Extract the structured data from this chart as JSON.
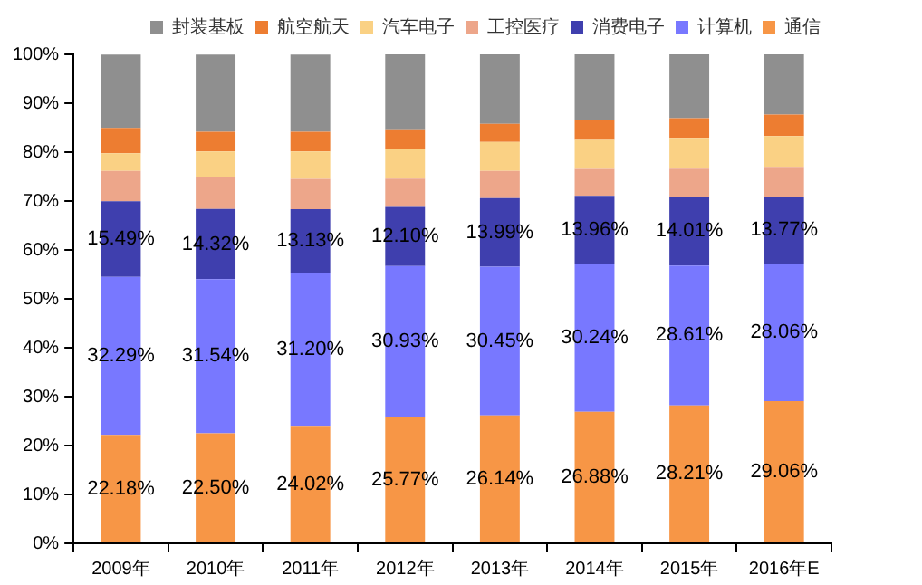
{
  "chart_data": {
    "type": "bar",
    "stacked": true,
    "categories": [
      "2009年",
      "2010年",
      "2011年",
      "2012年",
      "2013年",
      "2014年",
      "2015年",
      "2016年E"
    ],
    "ylim": [
      0,
      100
    ],
    "yticks": [
      {
        "value": 0,
        "label": "0%"
      },
      {
        "value": 10,
        "label": "10%"
      },
      {
        "value": 20,
        "label": "20%"
      },
      {
        "value": 30,
        "label": "30%"
      },
      {
        "value": 40,
        "label": "40%"
      },
      {
        "value": 50,
        "label": "50%"
      },
      {
        "value": 60,
        "label": "60%"
      },
      {
        "value": 70,
        "label": "70%"
      },
      {
        "value": 80,
        "label": "80%"
      },
      {
        "value": 90,
        "label": "90%"
      },
      {
        "value": 100,
        "label": "100%"
      }
    ],
    "grid": false,
    "legend": "top",
    "series": [
      {
        "name": "通信",
        "color": "#f79646",
        "values": [
          22.18,
          22.5,
          24.02,
          25.77,
          26.14,
          26.88,
          28.21,
          29.06
        ],
        "value_labels": [
          "22.18%",
          "22.50%",
          "24.02%",
          "25.77%",
          "26.14%",
          "26.88%",
          "28.21%",
          "29.06%"
        ]
      },
      {
        "name": "计算机",
        "color": "#7878ff",
        "values": [
          32.29,
          31.54,
          31.2,
          30.93,
          30.45,
          30.24,
          28.61,
          28.06
        ],
        "value_labels": [
          "32.29%",
          "31.54%",
          "31.20%",
          "30.93%",
          "30.45%",
          "30.24%",
          "28.61%",
          "28.06%"
        ]
      },
      {
        "name": "消费电子",
        "color": "#3f3fae",
        "values": [
          15.49,
          14.32,
          13.13,
          12.1,
          13.99,
          13.96,
          14.01,
          13.77
        ],
        "value_labels": [
          "15.49%",
          "14.32%",
          "13.13%",
          "12.10%",
          "13.99%",
          "13.96%",
          "14.01%",
          "13.77%"
        ]
      },
      {
        "name": "工控医疗",
        "color": "#eda68a",
        "values": [
          6.2,
          6.6,
          6.2,
          5.8,
          5.6,
          5.5,
          5.8,
          6.1
        ]
      },
      {
        "name": "汽车电子",
        "color": "#fad184",
        "values": [
          3.6,
          5.2,
          5.6,
          6.0,
          5.9,
          5.9,
          6.3,
          6.3
        ]
      },
      {
        "name": "航空航天",
        "color": "#ed7d31",
        "values": [
          5.2,
          4.0,
          4.0,
          3.9,
          3.7,
          4.0,
          4.0,
          4.4
        ]
      },
      {
        "name": "封装基板",
        "color": "#8f8f8f",
        "values": [
          15.0,
          15.8,
          15.8,
          15.5,
          14.2,
          13.5,
          13.1,
          12.3
        ]
      }
    ]
  }
}
